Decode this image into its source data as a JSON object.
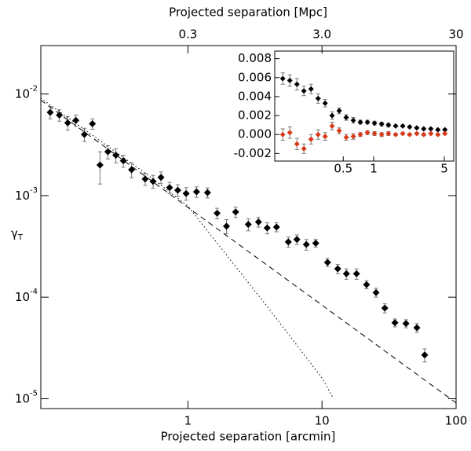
{
  "chart_data": [
    {
      "type": "scatter",
      "xlabel": "Projected separation [arcmin]",
      "ylabel": "γ_T",
      "x2label": "Projected separation [Mpc]",
      "xlog": true,
      "ylog": true,
      "xlim": [
        0.08,
        100
      ],
      "ylim": [
        8e-06,
        0.03
      ],
      "xticks": [
        1,
        10,
        100
      ],
      "yticks": [
        {
          "value": 0.01,
          "label": "10^-2"
        },
        {
          "value": 0.001,
          "label": "10^-3"
        },
        {
          "value": 0.0001,
          "label": "10^-4"
        },
        {
          "value": 1e-05,
          "label": "10^-5"
        }
      ],
      "x2lim": [
        0.024,
        30
      ],
      "x2ticks": [
        0.3,
        {
          "value": 3,
          "label": "3.0"
        },
        30
      ],
      "series": [
        {
          "mode": "markers",
          "color": "#000000",
          "x": [
            0.094,
            0.11,
            0.127,
            0.146,
            0.169,
            0.194,
            0.221,
            0.253,
            0.29,
            0.33,
            0.38,
            0.48,
            0.55,
            0.63,
            0.73,
            0.84,
            0.97,
            1.16,
            1.4,
            1.65,
            1.94,
            2.27,
            2.82,
            3.36,
            3.9,
            4.58,
            5.61,
            6.5,
            7.64,
            8.98,
            11,
            13.1,
            15.2,
            18.1,
            21.5,
            25.3,
            29.4,
            35,
            42.3,
            51,
            58.3
          ],
          "values": [
            0.0066,
            0.0062,
            0.0052,
            0.0055,
            0.004,
            0.0051,
            0.002,
            0.0027,
            0.0025,
            0.0022,
            0.0018,
            0.00146,
            0.00138,
            0.00151,
            0.0012,
            0.00113,
            0.00105,
            0.00109,
            0.00107,
            0.00067,
            0.0005,
            0.00069,
            0.00052,
            0.00055,
            0.00048,
            0.00049,
            0.00035,
            0.00037,
            0.00033,
            0.00034,
            0.00022,
            0.00019,
            0.00017,
            0.00017,
            0.000133,
            0.000111,
            7.8e-05,
            5.6e-05,
            5.5e-05,
            5e-05,
            2.7e-05
          ],
          "errors": [
            0.0009,
            0.0008,
            0.0008,
            0.0007,
            0.0006,
            0.0006,
            0.0007,
            0.0004,
            0.0004,
            0.0003,
            0.0003,
            0.0002,
            0.0002,
            0.0002,
            0.00015,
            0.00015,
            0.00015,
            0.00013,
            0.00012,
            8e-05,
            8e-05,
            8e-05,
            7e-05,
            6e-05,
            6e-05,
            5e-05,
            4e-05,
            4e-05,
            4e-05,
            3e-05,
            2e-05,
            2e-05,
            2e-05,
            2e-05,
            1.2e-05,
            1.1e-05,
            8e-06,
            5e-06,
            5e-06,
            5e-06,
            4e-06
          ]
        },
        {
          "mode": "line",
          "dash": "dashed",
          "color": "#000000",
          "x": [
            0.08,
            100
          ],
          "values": [
            0.0087,
            9.1e-06
          ]
        },
        {
          "mode": "line",
          "dash": "dotted",
          "color": "#000000",
          "x": [
            0.08,
            0.5,
            1,
            2.27,
            3.9,
            10,
            12.2
          ],
          "values": [
            0.0091,
            0.0016,
            0.00079,
            0.0002,
            8.1e-05,
            1.6e-05,
            1e-05
          ]
        }
      ]
    },
    {
      "type": "scatter",
      "xlog": true,
      "ylog": false,
      "xlim": [
        0.105,
        6.2
      ],
      "ylim": [
        -0.0028,
        0.0088
      ],
      "xticks": [
        0.5,
        1,
        5
      ],
      "yticks": [
        0.008,
        0.006,
        0.004,
        0.002,
        {
          "value": 0,
          "label": "0.000"
        },
        -0.002
      ],
      "series": [
        {
          "mode": "markers",
          "color": "#000000",
          "x": [
            0.126,
            0.148,
            0.174,
            0.204,
            0.24,
            0.282,
            0.331,
            0.388,
            0.456,
            0.535,
            0.629,
            0.738,
            0.867,
            1.02,
            1.2,
            1.4,
            1.65,
            1.94,
            2.27,
            2.67,
            3.13,
            3.68,
            4.32,
            5.07
          ],
          "values": [
            0.0059,
            0.0057,
            0.0053,
            0.0046,
            0.0048,
            0.0038,
            0.0033,
            0.002,
            0.0025,
            0.0018,
            0.0015,
            0.0013,
            0.0013,
            0.0012,
            0.0011,
            0.001,
            0.0009,
            0.0009,
            0.0008,
            0.0007,
            0.0006,
            0.0006,
            0.0005,
            0.0005
          ],
          "errors": [
            0.0006,
            0.0006,
            0.0006,
            0.0005,
            0.0005,
            0.0005,
            0.0004,
            0.0004,
            0.0003,
            0.0003,
            0.0003,
            0.0002,
            0.0002,
            0.0002,
            0.0002,
            0.0002,
            0.0001,
            0.0001,
            0.0001,
            0.0001,
            0.0001,
            0.0001,
            0.0001,
            0.0001
          ]
        },
        {
          "mode": "markers",
          "color": "#d83a1a",
          "x": [
            0.126,
            0.148,
            0.174,
            0.204,
            0.24,
            0.282,
            0.331,
            0.388,
            0.456,
            0.535,
            0.629,
            0.738,
            0.867,
            1.02,
            1.2,
            1.4,
            1.65,
            1.94,
            2.27,
            2.67,
            3.13,
            3.68,
            4.32,
            5.07
          ],
          "values": [
            0,
            0.0002,
            -0.001,
            -0.0015,
            -0.0005,
            0,
            -0.0002,
            0.0009,
            0.0004,
            -0.0003,
            -0.0002,
            0,
            0.0002,
            0.0001,
            0,
            0.0001,
            0,
            0.0001,
            0,
            0.0001,
            0,
            0.0001,
            0,
            0.0001
          ],
          "errors": [
            0.0006,
            0.0006,
            0.0006,
            0.0005,
            0.0005,
            0.0005,
            0.0004,
            0.0004,
            0.0003,
            0.0003,
            0.0003,
            0.0002,
            0.0002,
            0.0002,
            0.0002,
            0.0002,
            0.0001,
            0.0001,
            0.0001,
            0.0001,
            0.0001,
            0.0001,
            0.0001,
            0.0001
          ]
        }
      ]
    }
  ]
}
